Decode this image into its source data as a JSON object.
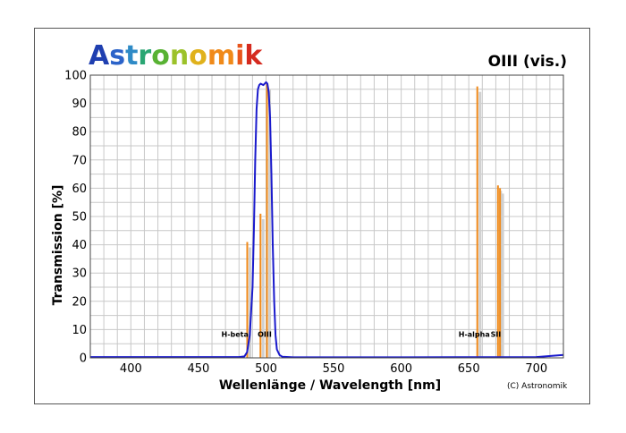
{
  "brand": {
    "text": "Astronomik",
    "letter_colors": [
      "#1f3fb0",
      "#2b63c9",
      "#2e8ac6",
      "#2aa673",
      "#58b233",
      "#9cc22a",
      "#e0b21c",
      "#f08a1a",
      "#e8551c",
      "#d52a1f"
    ]
  },
  "chart_data": {
    "type": "line",
    "title": "OIII (vis.)",
    "xlabel": "Wellenlänge / Wavelength [nm]",
    "ylabel": "Transmission [%]",
    "xlim": [
      370,
      720
    ],
    "ylim": [
      0,
      100
    ],
    "xticks": [
      400,
      450,
      500,
      550,
      600,
      650,
      700
    ],
    "yticks": [
      0,
      10,
      20,
      30,
      40,
      50,
      60,
      70,
      80,
      90,
      100
    ],
    "grid": true,
    "series": [
      {
        "color": "#1a1acc",
        "x": [
          370,
          480,
          484,
          486,
          488,
          490,
          491,
          492,
          493,
          494,
          495,
          496,
          498,
          499,
          500,
          501,
          502,
          503,
          504,
          505,
          506,
          507,
          508,
          510,
          512,
          520,
          600,
          700,
          720
        ],
        "y": [
          0.3,
          0.3,
          0.5,
          2,
          8,
          25,
          45,
          70,
          88,
          95,
          96.5,
          97,
          96.5,
          97,
          97.5,
          97,
          94,
          85,
          65,
          40,
          20,
          8,
          3,
          1,
          0.4,
          0.2,
          0.2,
          0.3,
          1
        ]
      }
    ],
    "emission_lines": [
      {
        "x": 486.1,
        "y": 41
      },
      {
        "x": 495.9,
        "y": 51
      },
      {
        "x": 500.7,
        "y": 97
      },
      {
        "x": 656.3,
        "y": 96
      },
      {
        "x": 671.6,
        "y": 61
      },
      {
        "x": 673.1,
        "y": 60
      }
    ],
    "line_color": "#f08a1a",
    "annotations": [
      {
        "text": "H-beta",
        "x": 477,
        "y": 7.5
      },
      {
        "text": "OIII",
        "x": 499,
        "y": 7.5
      },
      {
        "text": "H-alpha",
        "x": 654,
        "y": 7.5
      },
      {
        "text": "SII",
        "x": 670,
        "y": 7.5
      }
    ],
    "copyright": "(C) Astronomik"
  }
}
